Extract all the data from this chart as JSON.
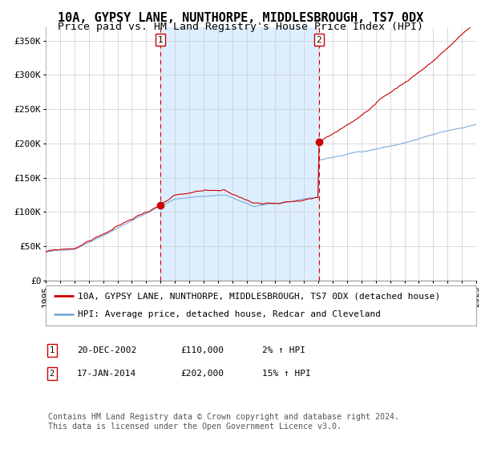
{
  "title": "10A, GYPSY LANE, NUNTHORPE, MIDDLESBROUGH, TS7 0DX",
  "subtitle": "Price paid vs. HM Land Registry's House Price Index (HPI)",
  "ylim": [
    0,
    370000
  ],
  "yticks": [
    0,
    50000,
    100000,
    150000,
    200000,
    250000,
    300000,
    350000
  ],
  "ytick_labels": [
    "£0",
    "£50K",
    "£100K",
    "£150K",
    "£200K",
    "£250K",
    "£300K",
    "£350K"
  ],
  "x_start_year": 1995,
  "x_end_year": 2025,
  "sale1_date": 2002.97,
  "sale1_price": 110000,
  "sale2_date": 2014.04,
  "sale2_price": 202000,
  "red_line_color": "#cc0000",
  "blue_line_color": "#7aabdb",
  "shade_color": "#ddeeff",
  "marker_color": "#cc0000",
  "grid_color": "#cccccc",
  "legend_label_red": "10A, GYPSY LANE, NUNTHORPE, MIDDLESBROUGH, TS7 0DX (detached house)",
  "legend_label_blue": "HPI: Average price, detached house, Redcar and Cleveland",
  "table_row1": [
    "1",
    "20-DEC-2002",
    "£110,000",
    "2% ↑ HPI"
  ],
  "table_row2": [
    "2",
    "17-JAN-2014",
    "£202,000",
    "15% ↑ HPI"
  ],
  "footer": "Contains HM Land Registry data © Crown copyright and database right 2024.\nThis data is licensed under the Open Government Licence v3.0.",
  "title_fontsize": 11,
  "subtitle_fontsize": 9.5,
  "tick_fontsize": 8,
  "legend_fontsize": 8
}
